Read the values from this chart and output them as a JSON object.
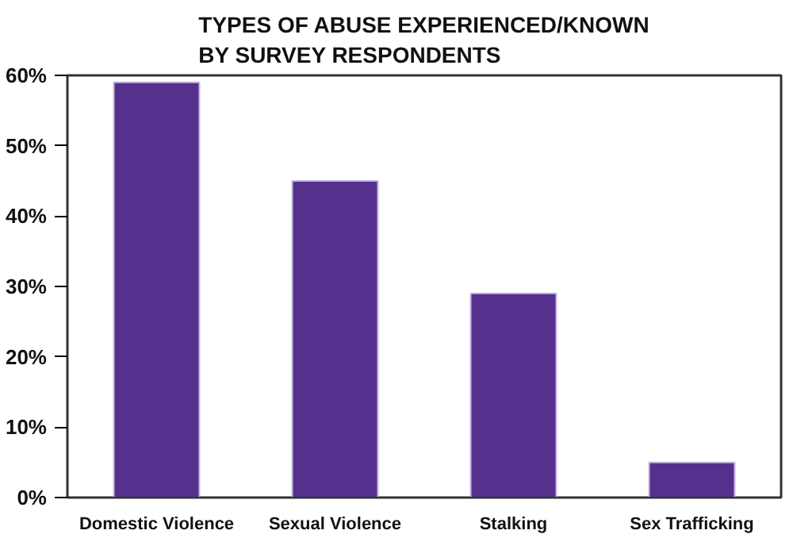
{
  "chart_data": {
    "type": "bar",
    "title": "TYPES OF ABUSE EXPERIENCED/KNOWN\nBY SURVEY RESPONDENTS",
    "categories": [
      "Domestic Violence",
      "Sexual Violence",
      "Stalking",
      "Sex Trafficking"
    ],
    "values": [
      59,
      45,
      29,
      5
    ],
    "color": "#55308d",
    "ylim": [
      0,
      60
    ],
    "yticks": [
      {
        "value": 0,
        "label": "0%"
      },
      {
        "value": 10,
        "label": "10%"
      },
      {
        "value": 20,
        "label": "20%"
      },
      {
        "value": 30,
        "label": "30%"
      },
      {
        "value": 40,
        "label": "40%"
      },
      {
        "value": 50,
        "label": "50%"
      },
      {
        "value": 60,
        "label": "60%"
      }
    ],
    "grid": false
  }
}
